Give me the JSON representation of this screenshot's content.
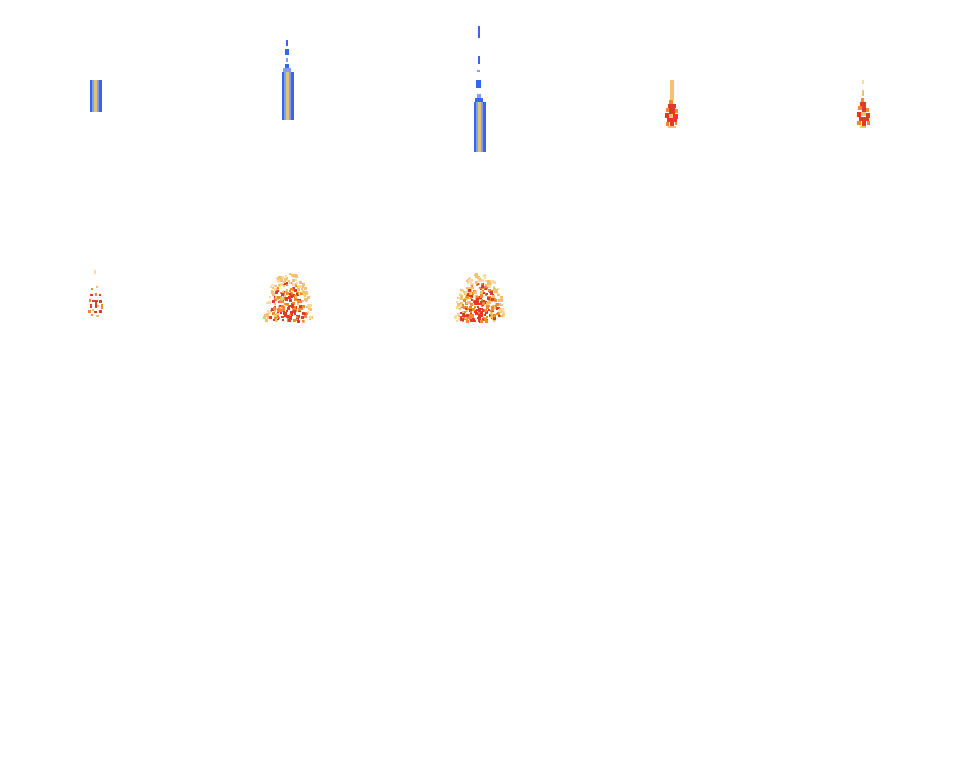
{
  "sprite_sheet": {
    "columns": 5,
    "rows": 4,
    "frame_count": 8,
    "palette": {
      "beam_edge": "#3a63f0",
      "beam_core": "#e8c07a",
      "beam_mid": "#7fa0f8",
      "fire_core": "#e03a2a",
      "fire_orange": "#f08a30",
      "fire_light": "#f5c070",
      "fire_pale": "#fadca0"
    },
    "frames": [
      {
        "index": 0,
        "kind": "beam-launch",
        "icon": "blue-beam-short-icon"
      },
      {
        "index": 1,
        "kind": "beam-rising",
        "icon": "blue-beam-medium-icon"
      },
      {
        "index": 2,
        "kind": "beam-rising",
        "icon": "blue-beam-tall-icon"
      },
      {
        "index": 3,
        "kind": "impact-flame",
        "icon": "flame-small-icon"
      },
      {
        "index": 4,
        "kind": "impact-flame",
        "icon": "flame-small-icon"
      },
      {
        "index": 5,
        "kind": "ember-burst",
        "icon": "embers-icon"
      },
      {
        "index": 6,
        "kind": "explosion",
        "icon": "explosion-icon"
      },
      {
        "index": 7,
        "kind": "explosion",
        "icon": "explosion-large-icon"
      }
    ]
  }
}
